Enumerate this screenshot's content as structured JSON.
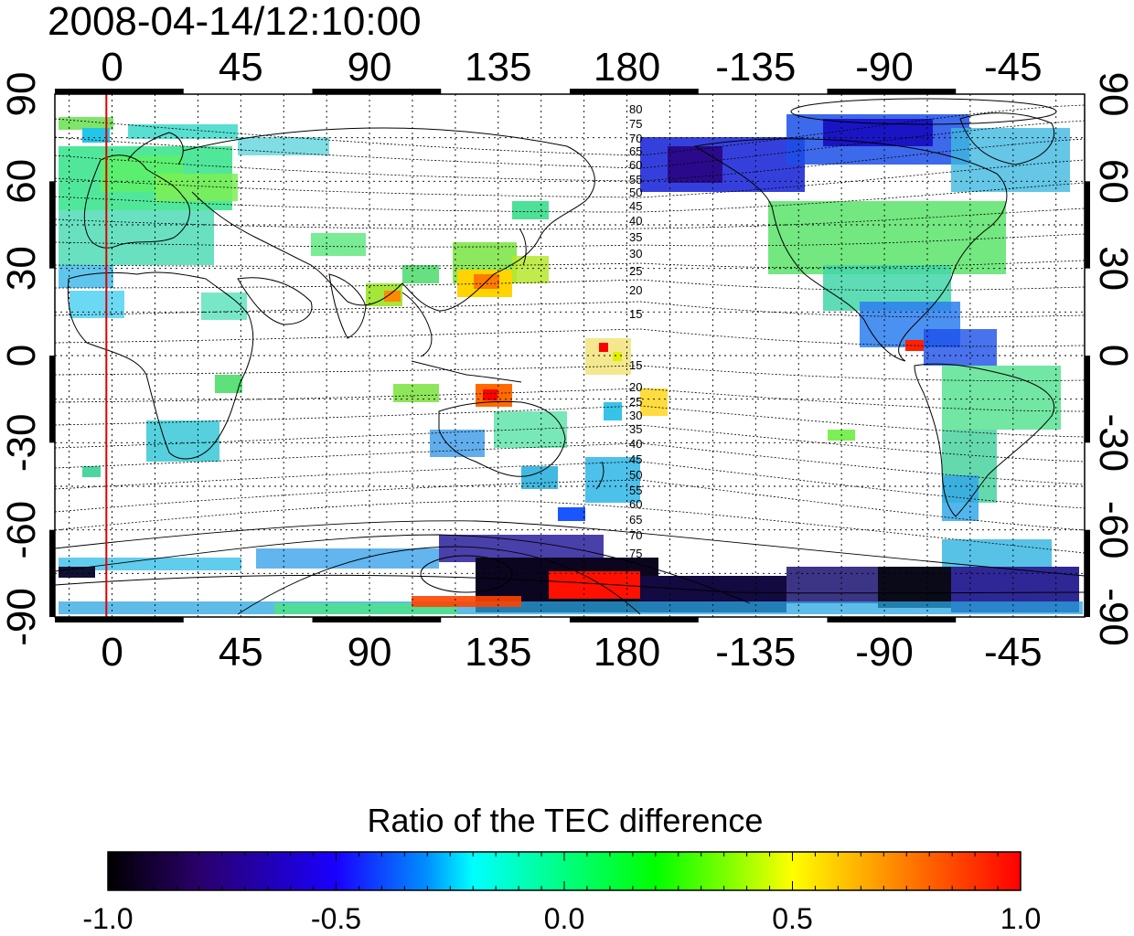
{
  "title": "2008-04-14/12:10:00",
  "map": {
    "x_ticks_top": [
      "0",
      "45",
      "90",
      "135",
      "180",
      "-135",
      "-90",
      "-45"
    ],
    "x_ticks_bottom": [
      "0",
      "45",
      "90",
      "135",
      "180",
      "-135",
      "-90",
      "-45"
    ],
    "y_ticks_left": [
      "90",
      "60",
      "30",
      "0",
      "-30",
      "-60",
      "-90"
    ],
    "y_ticks_right": [
      "90",
      "60",
      "30",
      "0",
      "-30",
      "-60",
      "-90"
    ],
    "lon_range": [
      -20,
      340
    ],
    "lat_range": [
      -90,
      90
    ],
    "grid": true,
    "terminator_lon": -2,
    "contour_labels_north": [
      "80",
      "75",
      "70",
      "65",
      "60",
      "55",
      "50",
      "45",
      "40",
      "35",
      "30",
      "25",
      "20",
      "15"
    ],
    "contour_labels_south": [
      "15",
      "20",
      "25",
      "30",
      "35",
      "40",
      "45",
      "50",
      "55",
      "60",
      "65",
      "70",
      "75"
    ]
  },
  "colorbar": {
    "title": "Ratio of the TEC difference",
    "ticks": [
      "-1.0",
      "-0.5",
      "0.0",
      "0.5",
      "1.0"
    ],
    "range": [
      -1.0,
      1.0
    ],
    "colors": [
      "#000000",
      "#2a006a",
      "#1a00ff",
      "#0090ff",
      "#00ffff",
      "#00ff80",
      "#00ff00",
      "#80ff00",
      "#ffff00",
      "#ff8000",
      "#ff0000"
    ]
  },
  "colors": {
    "terminator": "#e00000",
    "grid": "#000000",
    "coast": "#000000"
  }
}
